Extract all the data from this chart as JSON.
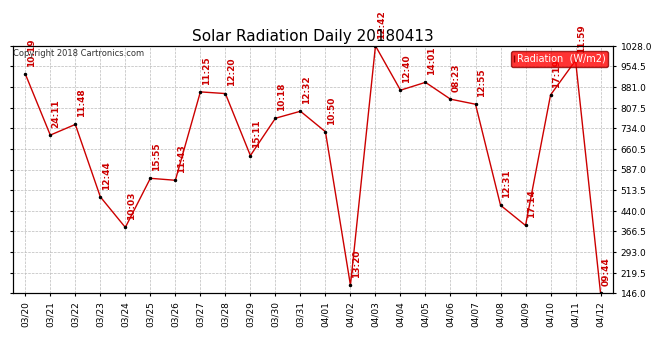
{
  "title": "Solar Radiation Daily 20180413",
  "copyright": "Copyright 2018 Cartronics.com",
  "legend_label": "Radiation  (W/m2)",
  "ylim": [
    146.0,
    1028.0
  ],
  "yticks": [
    146.0,
    219.5,
    293.0,
    366.5,
    440.0,
    513.5,
    587.0,
    660.5,
    734.0,
    807.5,
    881.0,
    954.5,
    1028.0
  ],
  "dates": [
    "03/20",
    "03/21",
    "03/22",
    "03/23",
    "03/24",
    "03/25",
    "03/26",
    "03/27",
    "03/28",
    "03/29",
    "03/30",
    "03/31",
    "04/01",
    "04/02",
    "04/03",
    "04/04",
    "04/05",
    "04/06",
    "04/07",
    "04/08",
    "04/09",
    "04/10",
    "04/11",
    "04/12"
  ],
  "values": [
    928,
    710,
    748,
    490,
    381,
    556,
    549,
    864,
    858,
    637,
    770,
    795,
    722,
    175,
    1028,
    870,
    898,
    838,
    820,
    460,
    388,
    853,
    976,
    146
  ],
  "labels": [
    "10:19",
    "24:11",
    "11:48",
    "12:44",
    "10:03",
    "15:55",
    "11:43",
    "11:25",
    "12:20",
    "15:11",
    "10:18",
    "12:32",
    "10:50",
    "13:20",
    "12:42",
    "12:40",
    "14:01",
    "08:23",
    "12:55",
    "12:31",
    "17:14",
    "17:19",
    "11:59",
    "09:44"
  ],
  "line_color": "#cc0000",
  "label_color": "#cc0000",
  "bg_color": "#ffffff",
  "grid_color": "#bbbbbb",
  "title_fontsize": 11,
  "tick_fontsize": 6.5,
  "label_fontsize": 6.5,
  "copyright_fontsize": 6
}
